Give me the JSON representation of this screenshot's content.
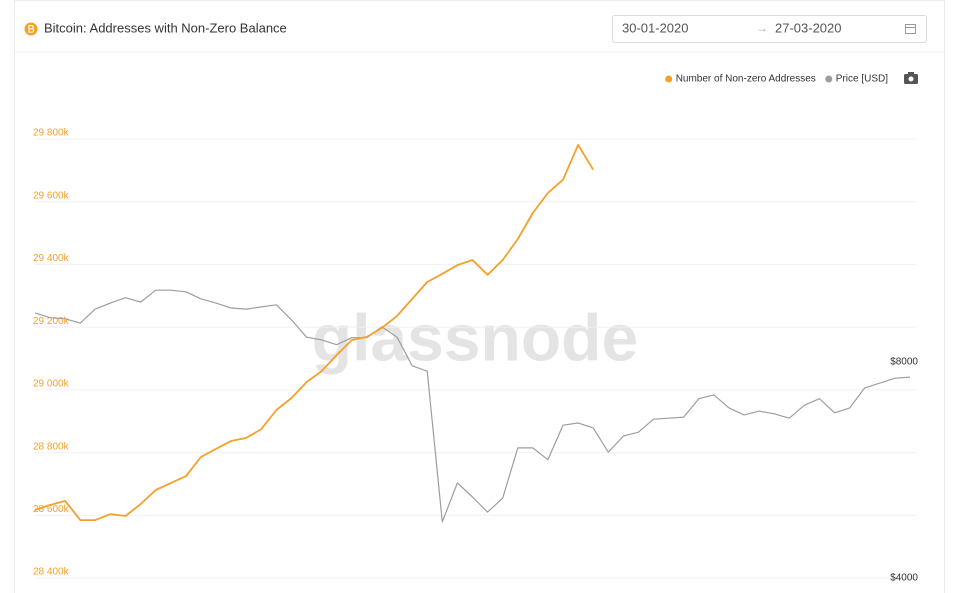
{
  "header": {
    "title": "Bitcoin: Addresses with Non-Zero Balance",
    "date_from": "30-01-2020",
    "date_arrow": "→",
    "date_to": "27-03-2020"
  },
  "chart_data": {
    "type": "line",
    "watermark": "glassnode",
    "legend": "top-right",
    "grid": true,
    "ylim": [
      28378000,
      29972000
    ],
    "yticks": [
      {
        "value": 28400000,
        "label": "28 400k"
      },
      {
        "value": 28600000,
        "label": "28 600k"
      },
      {
        "value": 28800000,
        "label": "28 800k"
      },
      {
        "value": 29000000,
        "label": "29 000k"
      },
      {
        "value": 29200000,
        "label": "29 200k"
      },
      {
        "value": 29400000,
        "label": "29 400k"
      },
      {
        "value": 29600000,
        "label": "29 600k"
      },
      {
        "value": 29800000,
        "label": "29 800k"
      }
    ],
    "y2lim": [
      3870,
      13130
    ],
    "y2ticks": [
      {
        "value": 4000,
        "label": "$4000"
      },
      {
        "value": 8000,
        "label": "$8000"
      }
    ],
    "series": [
      {
        "name": "Number of Non-zero Addresses",
        "color": "#f5a02a",
        "values": [
          28617000,
          28633000,
          28646000,
          28585000,
          28585000,
          28604000,
          28598000,
          28636000,
          28681000,
          28703000,
          28725000,
          28786000,
          28812000,
          28837000,
          28847000,
          28875000,
          28936000,
          28974000,
          29025000,
          29060000,
          29111000,
          29159000,
          29169000,
          29198000,
          29236000,
          29290000,
          29344000,
          29370000,
          29398000,
          29414000,
          29367000,
          29414000,
          29481000,
          29564000,
          29628000,
          29670000,
          29781000,
          29702000,
          null,
          null,
          null,
          null,
          null,
          null,
          null,
          null,
          null,
          null,
          null,
          null,
          null,
          null,
          null,
          null,
          null,
          null,
          null,
          null,
          null
        ]
      },
      {
        "name": "Price [USD]",
        "color": "#9e9e9e",
        "axis": "y2",
        "values": [
          8910,
          8820,
          8800,
          8720,
          8980,
          9090,
          9190,
          9110,
          9330,
          9330,
          9300,
          9170,
          9090,
          9000,
          8980,
          9020,
          9060,
          8780,
          8460,
          8410,
          8320,
          8450,
          8450,
          8650,
          8460,
          7930,
          7830,
          5040,
          5760,
          5500,
          5220,
          5480,
          6410,
          6410,
          6190,
          6830,
          6870,
          6780,
          6330,
          6630,
          6700,
          6940,
          6960,
          6980,
          7320,
          7390,
          7150,
          7020,
          7090,
          7040,
          6960,
          7200,
          7320,
          7060,
          7150,
          7520,
          7610,
          7700,
          7720
        ]
      }
    ]
  }
}
